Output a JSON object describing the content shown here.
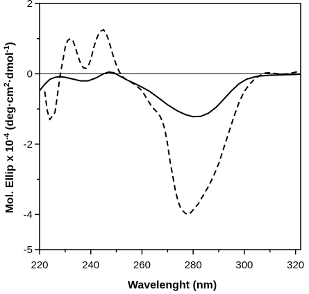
{
  "chart_data": {
    "type": "line",
    "title": "",
    "xlabel": "Wavelenght (nm)",
    "ylabel_main": "Mol. Ellip x 10",
    "ylabel_exp": "-4",
    "ylabel_units_a": " (deg·cm",
    "ylabel_units_sup_a": "2",
    "ylabel_units_b": "·dmol",
    "ylabel_units_sup_b": "-1",
    "ylabel_units_c": ")",
    "xlim": [
      220,
      322
    ],
    "ylim": [
      -5,
      2
    ],
    "x_ticks": [
      220,
      240,
      260,
      280,
      300,
      320
    ],
    "x_minor_ticks": [
      230,
      250,
      270,
      290,
      310
    ],
    "y_ticks": [
      2,
      0,
      -2,
      -4,
      -5
    ],
    "y_minor_ticks": [
      1,
      -1,
      -3
    ],
    "y_tick_labels": [
      "2",
      "0",
      "-2",
      "-4",
      "-5"
    ],
    "x_tick_labels": [
      "220",
      "240",
      "260",
      "280",
      "300",
      "320"
    ],
    "zero_line": true,
    "grid": false,
    "legend": "none",
    "series": [
      {
        "style": "solid",
        "x": [
          220,
          222,
          224,
          226,
          228,
          230,
          233,
          236,
          239,
          242,
          245,
          247,
          249,
          251,
          254,
          257,
          260,
          263,
          266,
          270,
          274,
          277,
          280,
          283,
          286,
          289,
          292,
          295,
          298,
          301,
          305,
          310,
          315,
          320,
          322
        ],
        "y": [
          -0.48,
          -0.3,
          -0.16,
          -0.1,
          -0.08,
          -0.1,
          -0.15,
          -0.2,
          -0.2,
          -0.12,
          0.0,
          0.05,
          0.03,
          -0.05,
          -0.17,
          -0.27,
          -0.38,
          -0.5,
          -0.66,
          -0.88,
          -1.06,
          -1.16,
          -1.22,
          -1.21,
          -1.12,
          -0.95,
          -0.72,
          -0.48,
          -0.28,
          -0.15,
          -0.07,
          -0.04,
          -0.03,
          -0.02,
          -0.01
        ]
      },
      {
        "style": "dashed",
        "x": [
          222,
          223,
          224,
          225,
          226,
          227,
          228,
          229,
          230,
          231,
          232,
          233,
          234,
          235,
          236,
          237,
          238,
          239,
          240,
          241,
          242,
          243,
          244,
          245,
          246,
          247,
          248,
          249,
          250,
          251,
          252,
          253,
          254,
          256,
          258,
          260,
          262,
          264,
          266,
          267,
          268,
          269,
          270,
          271,
          272,
          273,
          274,
          275,
          276,
          277,
          278,
          279,
          280,
          282,
          284,
          286,
          288,
          290,
          292,
          294,
          296,
          298,
          300,
          302,
          304,
          306,
          308,
          310,
          313,
          316,
          319,
          322
        ],
        "y": [
          -0.5,
          -1.05,
          -1.3,
          -1.2,
          -1.1,
          -0.6,
          -0.05,
          0.35,
          0.75,
          0.95,
          1.0,
          0.95,
          0.75,
          0.5,
          0.3,
          0.18,
          0.15,
          0.22,
          0.4,
          0.7,
          0.95,
          1.12,
          1.22,
          1.25,
          1.15,
          0.95,
          0.7,
          0.45,
          0.25,
          0.08,
          -0.05,
          -0.12,
          -0.17,
          -0.25,
          -0.35,
          -0.48,
          -0.72,
          -0.95,
          -1.1,
          -1.2,
          -1.35,
          -1.6,
          -2.0,
          -2.5,
          -2.9,
          -3.3,
          -3.6,
          -3.8,
          -3.9,
          -3.97,
          -4.0,
          -3.95,
          -3.87,
          -3.7,
          -3.45,
          -3.2,
          -2.9,
          -2.55,
          -2.1,
          -1.65,
          -1.2,
          -0.8,
          -0.5,
          -0.3,
          -0.15,
          -0.05,
          0.02,
          0.03,
          0.0,
          -0.01,
          0.03,
          0.08
        ]
      }
    ]
  }
}
